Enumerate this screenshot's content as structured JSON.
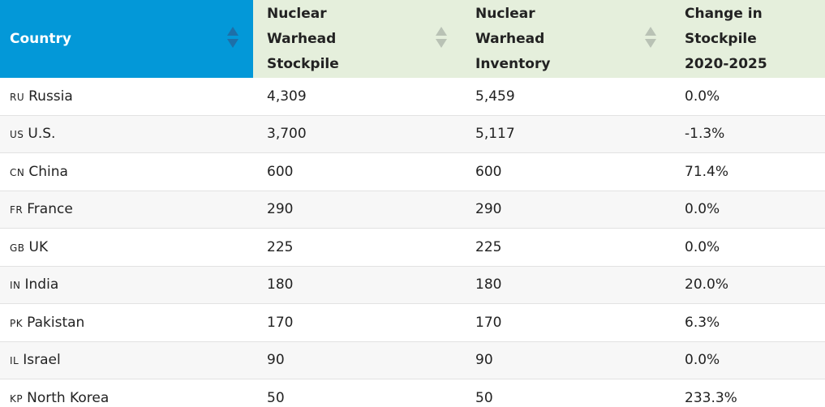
{
  "table": {
    "headers": [
      "Country",
      "Nuclear Warhead Stockpile",
      "Nuclear Warhead Inventory",
      "Change in Stockpile 2020-2025"
    ],
    "rows": [
      [
        "RU",
        "Russia",
        "4,309",
        "5,459",
        "0.0%"
      ],
      [
        "US",
        "U.S.",
        "3,700",
        "5,117",
        "-1.3%"
      ],
      [
        "CN",
        "China",
        "600",
        "600",
        "71.4%"
      ],
      [
        "FR",
        "France",
        "290",
        "290",
        "0.0%"
      ],
      [
        "GB",
        "UK",
        "225",
        "225",
        "0.0%"
      ],
      [
        "IN",
        "India",
        "180",
        "180",
        "20.0%"
      ],
      [
        "PK",
        "Pakistan",
        "170",
        "170",
        "6.3%"
      ],
      [
        "IL",
        "Israel",
        "90",
        "90",
        "0.0%"
      ],
      [
        "KP",
        "North Korea",
        "50",
        "50",
        "233.3%"
      ]
    ]
  }
}
